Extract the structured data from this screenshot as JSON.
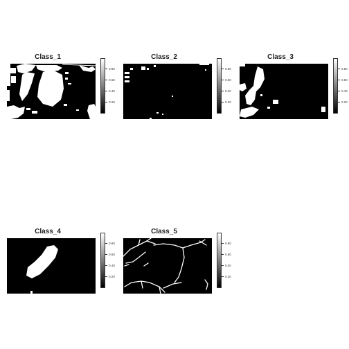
{
  "chart_data": {
    "type": "heatmap",
    "colorscale": [
      "#000000",
      "#ffffff"
    ],
    "colorbar_ticks": [
      "0.20",
      "0.40",
      "0.60",
      "0.80"
    ],
    "colorbar_tick_values": [
      0.2,
      0.4,
      0.6,
      0.8
    ],
    "colorbar_range": [
      0,
      1
    ],
    "panels": [
      {
        "title": "Class_1"
      },
      {
        "title": "Class_2"
      },
      {
        "title": "Class_3"
      },
      {
        "title": "Class_4"
      },
      {
        "title": "Class_5"
      }
    ]
  }
}
